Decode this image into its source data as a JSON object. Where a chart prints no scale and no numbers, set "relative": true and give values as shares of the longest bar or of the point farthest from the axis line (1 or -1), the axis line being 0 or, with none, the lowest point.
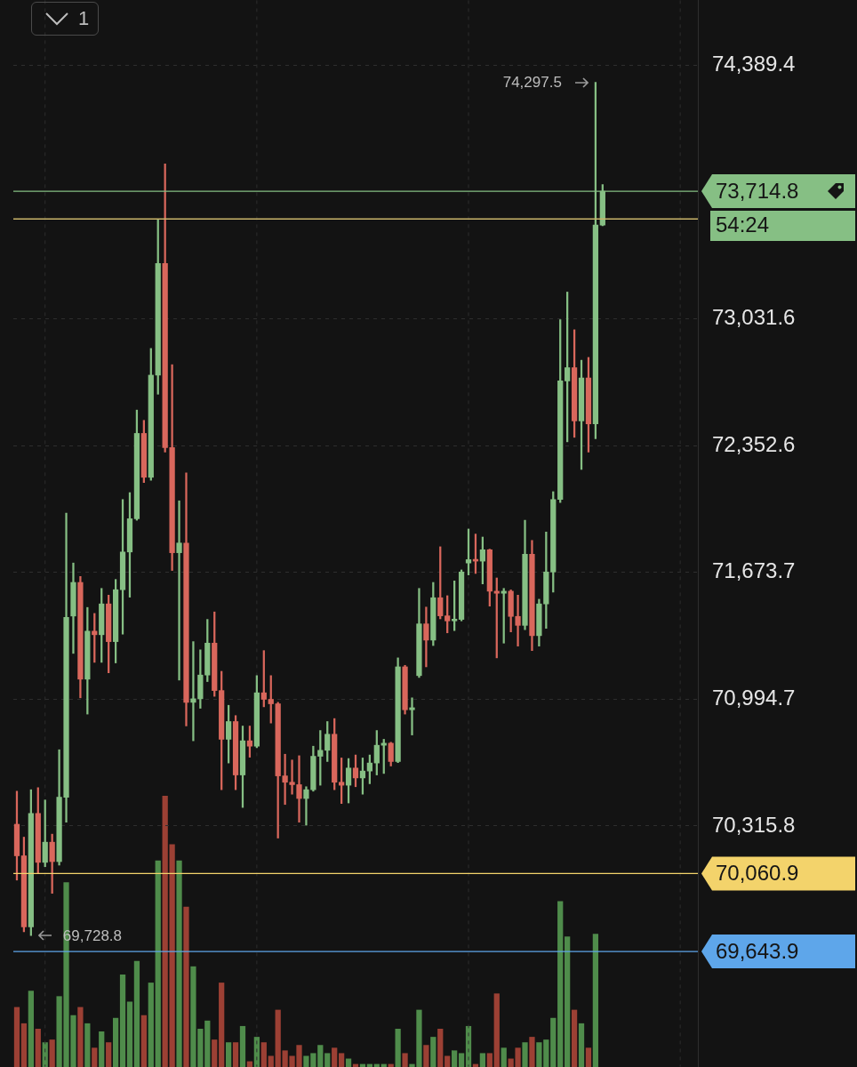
{
  "chart_data": [
    {
      "type": "candlestick",
      "categories": [
        null,
        null,
        null,
        null,
        null,
        null,
        null,
        null,
        null,
        null,
        null,
        null,
        null,
        null,
        null,
        null,
        null,
        null,
        null,
        null,
        null,
        null,
        null,
        null,
        null,
        null,
        null,
        null,
        null,
        null,
        null,
        null,
        null,
        null,
        null,
        null,
        null,
        null,
        null,
        null,
        null,
        null,
        null,
        null,
        null,
        null,
        null,
        null,
        null,
        null,
        null,
        null,
        null,
        null,
        null,
        null,
        null,
        null,
        null,
        null,
        null,
        null,
        null,
        null,
        null,
        null,
        null,
        null,
        null,
        null,
        null,
        null,
        null,
        null,
        null,
        null,
        null,
        null,
        null,
        null,
        null,
        null,
        null,
        null,
        null,
        null,
        null,
        null,
        null,
        null,
        null,
        null,
        null,
        null,
        null,
        null,
        null
      ],
      "series": [
        {
          "ohlc": [
            [
              70325,
              70502,
              70026,
              70156
            ],
            [
              70156,
              70256,
              69749,
              69776
            ],
            [
              69776,
              70510,
              69728.8,
              70383
            ],
            [
              70383,
              70521,
              70061,
              70121
            ],
            [
              70121,
              70455,
              70098,
              70229
            ],
            [
              70229,
              70272,
              69955,
              70125
            ],
            [
              70125,
              70724,
              70106,
              70470
            ],
            [
              70470,
              71991,
              70336,
              71433
            ],
            [
              71440,
              71724,
              71240,
              71620
            ],
            [
              71620,
              71652,
              71002,
              71102
            ],
            [
              71102,
              71486,
              70915,
              71359
            ],
            [
              71359,
              71454,
              71192,
              71340
            ],
            [
              71340,
              71588,
              71192,
              71505
            ],
            [
              71505,
              71552,
              71136,
              71303
            ],
            [
              71303,
              71636,
              71189,
              71581
            ],
            [
              71581,
              72064,
              71343,
              71783
            ],
            [
              71783,
              72101,
              71541,
              71961
            ],
            [
              71961,
              72543,
              71953,
              72418
            ],
            [
              72418,
              72488,
              72155,
              72183
            ],
            [
              72183,
              72873,
              72167,
              72730
            ],
            [
              72730,
              73566,
              72628,
              73328
            ],
            [
              73328,
              73861,
              72318,
              72342
            ],
            [
              72342,
              72786,
              71684,
              71779
            ],
            [
              71779,
              72057,
              71097,
              71831
            ],
            [
              71831,
              72207,
              70851,
              70978
            ],
            [
              70978,
              71303,
              70772,
              70997
            ],
            [
              70997,
              71259,
              70946,
              71124
            ],
            [
              71124,
              71422,
              71089,
              71295
            ],
            [
              71295,
              71462,
              71010,
              71041
            ],
            [
              71041,
              71144,
              70510,
              70780
            ],
            [
              70780,
              70962,
              70653,
              70875
            ],
            [
              70875,
              70907,
              70510,
              70589
            ],
            [
              70589,
              70851,
              70415,
              70772
            ],
            [
              70772,
              70851,
              70684,
              70743
            ],
            [
              70743,
              71121,
              70735,
              71029
            ],
            [
              71029,
              71255,
              70954,
              70994
            ],
            [
              70994,
              71121,
              70867,
              70970
            ],
            [
              70970,
              70978,
              70251,
              70584
            ],
            [
              70584,
              70700,
              70431,
              70550
            ],
            [
              70550,
              70669,
              70486,
              70537
            ],
            [
              70537,
              70692,
              70336,
              70463
            ],
            [
              70463,
              70526,
              70320,
              70510
            ],
            [
              70510,
              70743,
              70502,
              70689
            ],
            [
              70689,
              70827,
              70534,
              70721
            ],
            [
              70721,
              70875,
              70661,
              70807
            ],
            [
              70807,
              70891,
              70510,
              70550
            ],
            [
              70550,
              70680,
              70436,
              70534
            ],
            [
              70534,
              70677,
              70439,
              70626
            ],
            [
              70626,
              70696,
              70526,
              70573
            ],
            [
              70573,
              70680,
              70486,
              70610
            ],
            [
              70610,
              70696,
              70542,
              70653
            ],
            [
              70653,
              70827,
              70589,
              70748
            ],
            [
              70748,
              70780,
              70597,
              70759
            ],
            [
              70759,
              70764,
              70637,
              70661
            ],
            [
              70661,
              71216,
              70655,
              71168
            ],
            [
              71168,
              71176,
              70915,
              70938
            ],
            [
              70938,
              71002,
              70803,
              70949
            ],
            [
              71121,
              71588,
              71111,
              71398
            ],
            [
              71398,
              71488,
              71168,
              71311
            ],
            [
              71311,
              71620,
              71282,
              71538
            ],
            [
              71538,
              71811,
              71425,
              71441
            ],
            [
              71441,
              71549,
              71350,
              71414
            ],
            [
              71414,
              71628,
              71362,
              71422
            ],
            [
              71422,
              71687,
              71414,
              71676
            ],
            [
              71724,
              71906,
              71660,
              71742
            ],
            [
              71742,
              71879,
              71668,
              71734
            ],
            [
              71734,
              71863,
              71612,
              71795
            ],
            [
              71795,
              71798,
              71493,
              71573
            ],
            [
              71573,
              71644,
              71216,
              71562
            ],
            [
              71562,
              71588,
              71295,
              71573
            ],
            [
              71573,
              71580,
              71355,
              71438
            ],
            [
              71438,
              71552,
              71279,
              71390
            ],
            [
              71390,
              71953,
              71367,
              71771
            ],
            [
              71771,
              71845,
              71255,
              71335
            ],
            [
              71335,
              71530,
              71279,
              71505
            ],
            [
              71505,
              71890,
              71374,
              71676
            ],
            [
              71676,
              72106,
              71568,
              72064
            ],
            [
              72064,
              73027,
              72048,
              72699
            ],
            [
              72699,
              73175,
              72373,
              72770
            ],
            [
              72770,
              72973,
              72397,
              72485
            ],
            [
              72485,
              72810,
              72225,
              72715
            ],
            [
              72715,
              72825,
              72318,
              72469
            ],
            [
              72469,
              74297.5,
              72390,
              73534
            ],
            [
              73534,
              73750,
              73530,
              73714.8
            ],
            null,
            null,
            null,
            null,
            null,
            null,
            null,
            null,
            null,
            null,
            null,
            null,
            null
          ],
          "colors": [
            "#d9675c",
            "#d9675c",
            "#86bf84",
            "#d9675c",
            "#86bf84",
            "#d9675c",
            "#86bf84",
            "#86bf84",
            "#86bf84",
            "#d9675c",
            "#86bf84",
            "#d9675c",
            "#86bf84",
            "#d9675c",
            "#86bf84",
            "#86bf84",
            "#86bf84",
            "#86bf84",
            "#d9675c",
            "#86bf84",
            "#86bf84",
            "#d9675c",
            "#d9675c",
            "#86bf84",
            "#d9675c",
            "#86bf84",
            "#86bf84",
            "#86bf84",
            "#d9675c",
            "#d9675c",
            "#86bf84",
            "#d9675c",
            "#86bf84",
            "#d9675c",
            "#86bf84",
            "#d9675c",
            "#d9675c",
            "#d9675c",
            "#d9675c",
            "#d9675c",
            "#d9675c",
            "#86bf84",
            "#86bf84",
            "#86bf84",
            "#86bf84",
            "#d9675c",
            "#d9675c",
            "#86bf84",
            "#d9675c",
            "#86bf84",
            "#86bf84",
            "#86bf84",
            "#86bf84",
            "#d9675c",
            "#86bf84",
            "#d9675c",
            "#86bf84",
            "#86bf84",
            "#d9675c",
            "#86bf84",
            "#d9675c",
            "#d9675c",
            "#86bf84",
            "#86bf84",
            "#86bf84",
            "#d9675c",
            "#86bf84",
            "#d9675c",
            "#d9675c",
            "#86bf84",
            "#d9675c",
            "#d9675c",
            "#86bf84",
            "#d9675c",
            "#86bf84",
            "#86bf84",
            "#86bf84",
            "#86bf84",
            "#86bf84",
            "#d9675c",
            "#86bf84",
            "#d9675c",
            "#86bf84",
            "#86bf84",
            null,
            null,
            null,
            null,
            null,
            null,
            null,
            null,
            null,
            null,
            null,
            null,
            null
          ]
        }
      ],
      "ylim": [
        69027,
        74737
      ],
      "yticks": [
        {
          "value": 70315.8,
          "label": "70,315.8"
        },
        {
          "value": 70994.7,
          "label": "70,994.7"
        },
        {
          "value": 71673.7,
          "label": "71,673.7"
        },
        {
          "value": 72352.6,
          "label": "72,352.6"
        },
        {
          "value": 73031.6,
          "label": "73,031.6"
        },
        {
          "value": 74389.4,
          "label": "74,389.4"
        }
      ],
      "tick_labels": "y",
      "grid": true,
      "legend": false,
      "ref_lines": [
        {
          "axis": "y",
          "value": 73566.3,
          "label": null,
          "color": "#c9b56a"
        },
        {
          "axis": "y",
          "value": 73714.8,
          "label": "73,714.8",
          "color": "#86bf84"
        },
        {
          "axis": "y",
          "value": 70060.9,
          "label": "70,060.9",
          "color": "#f3d36b"
        },
        {
          "axis": "y",
          "value": 69643.9,
          "label": "69,643.9",
          "color": "#5ea6ea"
        }
      ],
      "annotations": [
        "1",
        "54:24",
        "74,297.5",
        "69,728.8"
      ]
    },
    {
      "type": "bar",
      "relative": true,
      "tick_labels": false,
      "legend": false,
      "categories": [
        null,
        null,
        null,
        null,
        null,
        null,
        null,
        null,
        null,
        null,
        null,
        null,
        null,
        null,
        null,
        null,
        null,
        null,
        null,
        null,
        null,
        null,
        null,
        null,
        null,
        null,
        null,
        null,
        null,
        null,
        null,
        null,
        null,
        null,
        null,
        null,
        null,
        null,
        null,
        null,
        null,
        null,
        null,
        null,
        null,
        null,
        null,
        null,
        null,
        null,
        null,
        null,
        null,
        null,
        null,
        null,
        null,
        null,
        null,
        null,
        null,
        null,
        null,
        null,
        null,
        null,
        null,
        null,
        null,
        null,
        null,
        null,
        null,
        null,
        null,
        null,
        null,
        null,
        null,
        null,
        null,
        null,
        null,
        null,
        null,
        null,
        null,
        null,
        null,
        null,
        null,
        null,
        null,
        null,
        null,
        null,
        null
      ],
      "values": [
        0.22,
        0.16,
        0.28,
        0.14,
        0.09,
        0.1,
        0.26,
        0.68,
        0.19,
        0.22,
        0.16,
        0.07,
        0.13,
        0.09,
        0.18,
        0.34,
        0.24,
        0.39,
        0.19,
        0.31,
        0.76,
        1,
        0.82,
        0.76,
        0.59,
        0.37,
        0.14,
        0.17,
        0.1,
        0.31,
        0.09,
        0.09,
        0.15,
        0.02,
        0.11,
        0.09,
        0.04,
        0.21,
        0.06,
        0.04,
        0.08,
        0.04,
        0.05,
        0.08,
        0.05,
        0.07,
        0.05,
        0.03,
        0.01,
        0.01,
        0.01,
        0.01,
        0.01,
        0.01,
        0.14,
        0.05,
        0.01,
        0.21,
        0.08,
        0.11,
        0.14,
        0.04,
        0.06,
        0.05,
        0.15,
        0.01,
        0.05,
        0.05,
        0.27,
        0.07,
        0.03,
        0.07,
        0.09,
        0.11,
        0.09,
        0.1,
        0.18,
        0.61,
        0.48,
        0.21,
        0.16,
        0.07,
        0.49,
        null,
        null,
        null,
        null,
        null,
        null,
        null,
        null,
        null,
        null,
        null,
        null,
        null,
        null
      ],
      "colors": [
        "#9c4034",
        "#9c4034",
        "#4f8c4b",
        "#9c4034",
        "#4f8c4b",
        "#9c4034",
        "#4f8c4b",
        "#4f8c4b",
        "#4f8c4b",
        "#9c4034",
        "#4f8c4b",
        "#9c4034",
        "#4f8c4b",
        "#9c4034",
        "#4f8c4b",
        "#4f8c4b",
        "#4f8c4b",
        "#4f8c4b",
        "#9c4034",
        "#4f8c4b",
        "#4f8c4b",
        "#9c4034",
        "#9c4034",
        "#4f8c4b",
        "#9c4034",
        "#4f8c4b",
        "#4f8c4b",
        "#4f8c4b",
        "#9c4034",
        "#9c4034",
        "#4f8c4b",
        "#9c4034",
        "#4f8c4b",
        "#9c4034",
        "#4f8c4b",
        "#9c4034",
        "#9c4034",
        "#9c4034",
        "#9c4034",
        "#9c4034",
        "#9c4034",
        "#4f8c4b",
        "#4f8c4b",
        "#4f8c4b",
        "#4f8c4b",
        "#9c4034",
        "#9c4034",
        "#4f8c4b",
        "#9c4034",
        "#4f8c4b",
        "#4f8c4b",
        "#4f8c4b",
        "#4f8c4b",
        "#9c4034",
        "#4f8c4b",
        "#9c4034",
        "#4f8c4b",
        "#4f8c4b",
        "#9c4034",
        "#4f8c4b",
        "#9c4034",
        "#9c4034",
        "#4f8c4b",
        "#4f8c4b",
        "#4f8c4b",
        "#9c4034",
        "#4f8c4b",
        "#9c4034",
        "#9c4034",
        "#4f8c4b",
        "#9c4034",
        "#9c4034",
        "#4f8c4b",
        "#9c4034",
        "#4f8c4b",
        "#4f8c4b",
        "#4f8c4b",
        "#4f8c4b",
        "#4f8c4b",
        "#9c4034",
        "#4f8c4b",
        "#9c4034",
        "#4f8c4b",
        "#4f8c4b",
        null,
        null,
        null,
        null,
        null,
        null,
        null,
        null,
        null,
        null,
        null,
        null,
        null
      ]
    }
  ]
}
